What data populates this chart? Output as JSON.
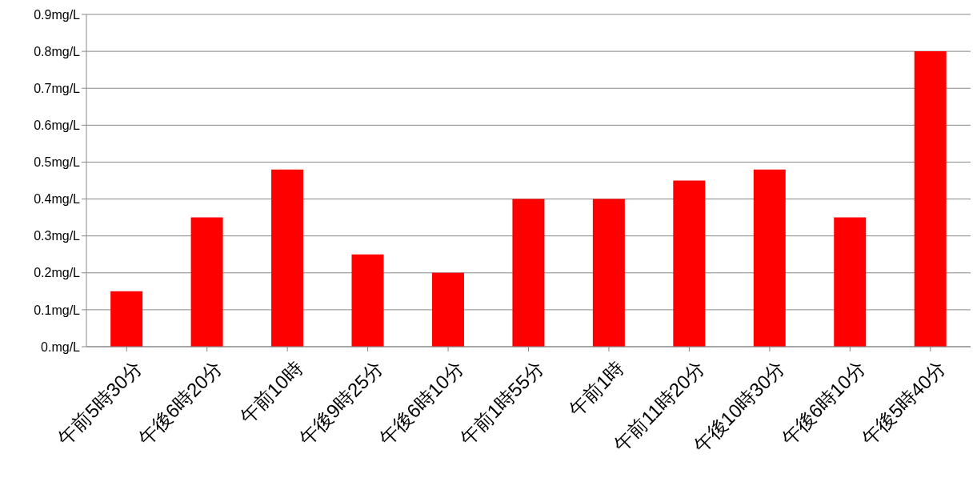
{
  "chart_data": {
    "type": "bar",
    "categories": [
      "午前5時30分",
      "午後6時20分",
      "午前10時",
      "午後9時25分",
      "午後6時10分",
      "午前1時55分",
      "午前1時",
      "午前11時20分",
      "午後10時30分",
      "午後6時10分",
      "午後5時40分"
    ],
    "values": [
      0.15,
      0.35,
      0.48,
      0.25,
      0.2,
      0.4,
      0.4,
      0.45,
      0.48,
      0.35,
      0.8
    ],
    "color": "#ff0000",
    "ylim": [
      0,
      0.9
    ],
    "yticks": [
      {
        "value": 0,
        "label": "0.mg/L"
      },
      {
        "value": 0.1,
        "label": "0.1mg/L"
      },
      {
        "value": 0.2,
        "label": "0.2mg/L"
      },
      {
        "value": 0.3,
        "label": "0.3mg/L"
      },
      {
        "value": 0.4,
        "label": "0.4mg/L"
      },
      {
        "value": 0.5,
        "label": "0.5mg/L"
      },
      {
        "value": 0.6,
        "label": "0.6mg/L"
      },
      {
        "value": 0.7,
        "label": "0.7mg/L"
      },
      {
        "value": 0.8,
        "label": "0.8mg/L"
      },
      {
        "value": 0.9,
        "label": "0.9mg/L"
      }
    ],
    "grid": "y"
  }
}
